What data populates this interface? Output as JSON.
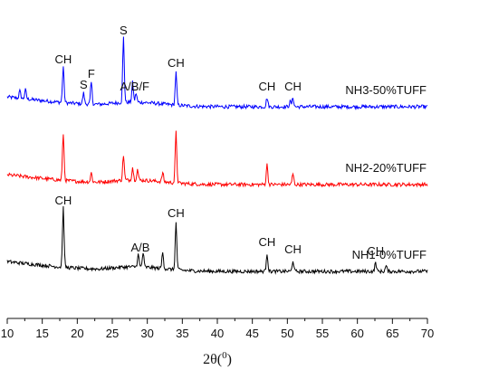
{
  "chart_data": {
    "type": "line",
    "xlabel": "2θ(",
    "xlabel_sup": "0",
    "xlabel_close": ")",
    "xlim": [
      10,
      70
    ],
    "xticks": [
      10,
      15,
      20,
      25,
      30,
      35,
      40,
      45,
      50,
      55,
      60,
      65,
      70
    ],
    "xtick_labels": [
      "10",
      "15",
      "20",
      "25",
      "30",
      "35",
      "40",
      "45",
      "50",
      "55",
      "60",
      "65",
      "70"
    ],
    "grid": false,
    "series": [
      {
        "name": "NH3-50%TUFF",
        "color": "#0000ff",
        "peaks": [
          [
            11.8,
            8
          ],
          [
            12.6,
            10
          ],
          [
            18.0,
            40
          ],
          [
            20.9,
            12
          ],
          [
            22.0,
            24
          ],
          [
            26.6,
            72
          ],
          [
            27.9,
            22
          ],
          [
            28.4,
            10
          ],
          [
            34.1,
            36
          ],
          [
            47.1,
            10
          ],
          [
            50.4,
            6
          ],
          [
            50.8,
            10
          ]
        ]
      },
      {
        "name": "NH2-20%TUFF",
        "color": "#ff0000",
        "peaks": [
          [
            18.0,
            52
          ],
          [
            22.0,
            10
          ],
          [
            26.6,
            28
          ],
          [
            27.9,
            14
          ],
          [
            28.6,
            12
          ],
          [
            32.2,
            10
          ],
          [
            34.1,
            56
          ],
          [
            47.1,
            22
          ],
          [
            50.8,
            12
          ]
        ]
      },
      {
        "name": "NH1-0%TUFF",
        "color": "#000000",
        "peaks": [
          [
            18.0,
            66
          ],
          [
            28.7,
            14
          ],
          [
            29.4,
            16
          ],
          [
            32.2,
            18
          ],
          [
            34.1,
            52
          ],
          [
            47.1,
            20
          ],
          [
            50.8,
            12
          ],
          [
            62.6,
            10
          ],
          [
            64.1,
            6
          ]
        ]
      }
    ],
    "annotations": [
      {
        "text": "CH",
        "series": 0,
        "x": 18.0
      },
      {
        "text": "S",
        "series": 0,
        "x": 20.9
      },
      {
        "text": "F",
        "series": 0,
        "x": 22.0
      },
      {
        "text": "S",
        "series": 0,
        "x": 26.6
      },
      {
        "text": "A/B/F",
        "series": 0,
        "x": 28.2
      },
      {
        "text": "CH",
        "series": 0,
        "x": 34.1
      },
      {
        "text": "CH",
        "series": 0,
        "x": 47.1
      },
      {
        "text": "CH",
        "series": 0,
        "x": 50.8
      },
      {
        "text": "CH",
        "series": 2,
        "x": 18.0
      },
      {
        "text": "A/B",
        "series": 2,
        "x": 29.0
      },
      {
        "text": "CH",
        "series": 2,
        "x": 34.1
      },
      {
        "text": "CH",
        "series": 2,
        "x": 47.1
      },
      {
        "text": "CH",
        "series": 2,
        "x": 50.8
      },
      {
        "text": "CH",
        "series": 2,
        "x": 62.6
      }
    ]
  }
}
